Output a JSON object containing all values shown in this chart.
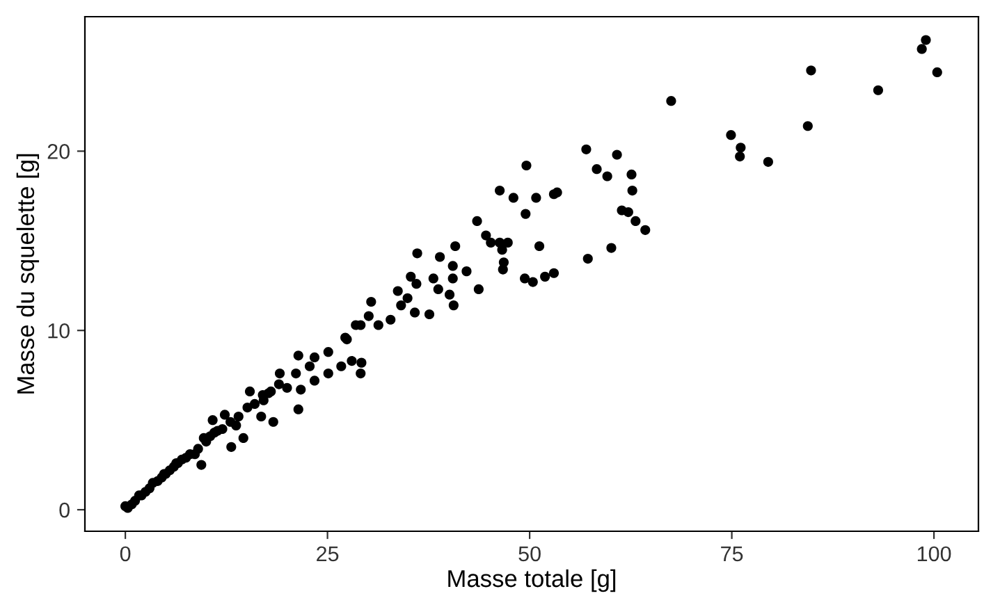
{
  "chart_data": {
    "type": "scatter",
    "xlabel": "Masse totale [g]",
    "ylabel": "Masse du squelette [g]",
    "xlim": [
      -5,
      105.5
    ],
    "ylim": [
      -1.2,
      27.5
    ],
    "xticks": [
      0,
      25,
      50,
      75,
      100
    ],
    "yticks": [
      0,
      10,
      20
    ],
    "grid": false,
    "legend": false,
    "marker": "circle",
    "series": [
      {
        "color": "#000000",
        "x": [
          99.0,
          98.5,
          100.4,
          84.8,
          93.1,
          84.4,
          67.5,
          74.9,
          76.1,
          76.0,
          79.5,
          57.0,
          60.8,
          58.3,
          59.6,
          62.6,
          62.7,
          61.4,
          62.2,
          63.1,
          64.3,
          60.1,
          57.2,
          49.6,
          46.3,
          48.0,
          50.8,
          53.0,
          53.4,
          49.5,
          43.5,
          44.6,
          45.2,
          46.3,
          47.3,
          46.6,
          51.2,
          46.8,
          46.7,
          49.4,
          50.4,
          51.9,
          53.0,
          43.7,
          40.8,
          38.9,
          36.1,
          40.5,
          42.2,
          40.5,
          38.1,
          35.3,
          36.0,
          38.7,
          40.1,
          40.6,
          33.7,
          34.9,
          34.1,
          35.8,
          37.6,
          30.4,
          30.1,
          32.8,
          31.3,
          28.5,
          27.2,
          25.1,
          26.7,
          28.0,
          29.2,
          29.1,
          27.4,
          23.4,
          21.4,
          22.8,
          21.1,
          19.1,
          29.1,
          25.1,
          23.4,
          21.7,
          20.0,
          17.7,
          15.4,
          17.1,
          15.1,
          16.8,
          18.3,
          21.4,
          12.3,
          10.8,
          11.4,
          13.7,
          14.6,
          13.1,
          9.7,
          8.6,
          6.3,
          9.4,
          4.8,
          3.4,
          1.7,
          0.0,
          0.3,
          0.8,
          1.2,
          2.0,
          2.5,
          3.0,
          4.0,
          4.5,
          5.0,
          5.5,
          6.0,
          6.5,
          7.0,
          7.5,
          8.0,
          9.0,
          10.0,
          10.5,
          11.0,
          12.0,
          13.0,
          14.0,
          16.0,
          17.0,
          18.0,
          19.0
        ],
        "values": [
          26.2,
          25.7,
          24.4,
          24.5,
          23.4,
          21.4,
          22.8,
          20.9,
          20.2,
          19.7,
          19.4,
          20.1,
          19.8,
          19.0,
          18.6,
          18.7,
          17.8,
          16.7,
          16.6,
          16.1,
          15.6,
          14.6,
          14.0,
          19.2,
          17.8,
          17.4,
          17.4,
          17.6,
          17.7,
          16.5,
          16.1,
          15.3,
          14.9,
          14.9,
          14.9,
          14.5,
          14.7,
          13.8,
          13.4,
          12.9,
          12.7,
          13.0,
          13.2,
          12.3,
          14.7,
          14.1,
          14.3,
          13.6,
          13.3,
          12.9,
          12.9,
          13.0,
          12.6,
          12.3,
          12.0,
          11.4,
          12.2,
          11.8,
          11.4,
          11.0,
          10.9,
          11.6,
          10.8,
          10.6,
          10.3,
          10.3,
          9.6,
          8.8,
          8.0,
          8.3,
          8.2,
          10.3,
          9.5,
          8.5,
          8.6,
          8.0,
          7.6,
          7.6,
          7.6,
          7.6,
          7.2,
          6.7,
          6.8,
          6.5,
          6.6,
          6.1,
          5.7,
          5.2,
          4.9,
          5.6,
          5.3,
          5.0,
          4.4,
          4.7,
          4.0,
          3.5,
          4.0,
          3.1,
          2.6,
          2.5,
          2.0,
          1.5,
          0.8,
          0.2,
          0.1,
          0.3,
          0.5,
          0.8,
          1.0,
          1.2,
          1.6,
          1.8,
          2.0,
          2.2,
          2.4,
          2.6,
          2.8,
          2.9,
          3.1,
          3.4,
          3.8,
          4.1,
          4.3,
          4.5,
          4.9,
          5.2,
          5.9,
          6.4,
          6.6,
          7.0
        ]
      }
    ]
  }
}
